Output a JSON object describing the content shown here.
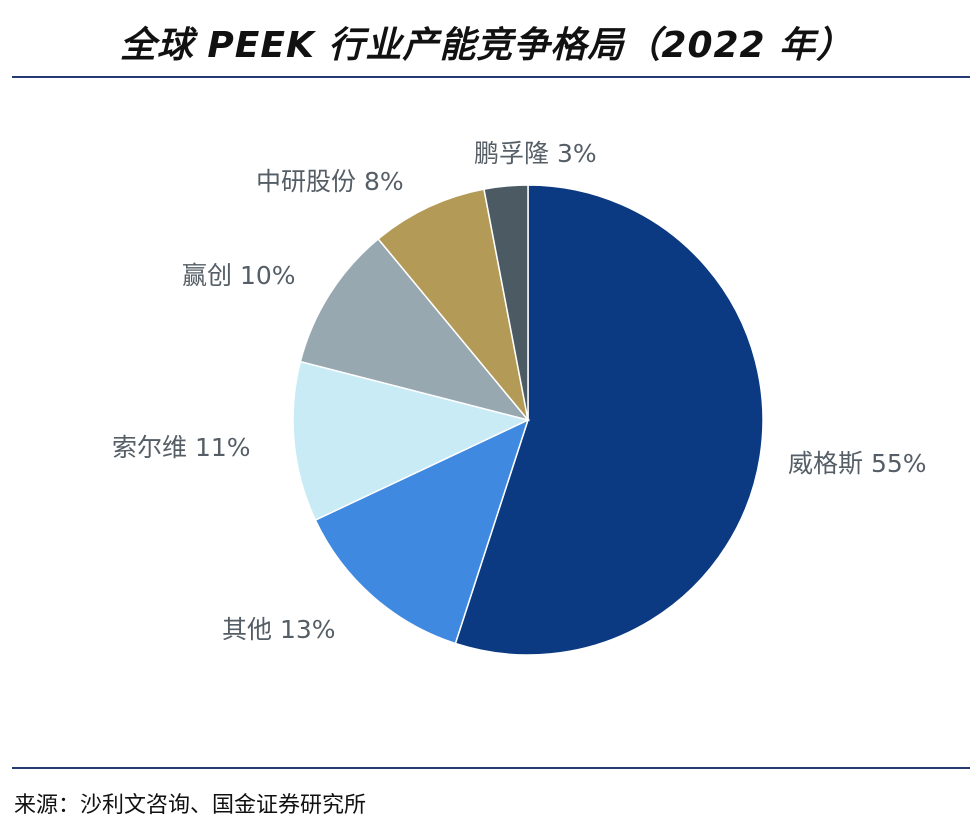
{
  "title": "全球 PEEK 行业产能竞争格局（2022 年）",
  "source": "来源：沙利文咨询、国金证券研究所",
  "chart_data": {
    "type": "pie",
    "title": "全球 PEEK 行业产能竞争格局（2022 年）",
    "slices": [
      {
        "label": "威格斯",
        "value": 55,
        "value_label": "55%",
        "color": "#0b3a82"
      },
      {
        "label": "其他",
        "value": 13,
        "value_label": "13%",
        "color": "#3f89e0"
      },
      {
        "label": "索尔维",
        "value": 11,
        "value_label": "11%",
        "color": "#c9ebf5"
      },
      {
        "label": "赢创",
        "value": 10,
        "value_label": "10%",
        "color": "#97a8b1"
      },
      {
        "label": "中研股份",
        "value": 8,
        "value_label": "8%",
        "color": "#b39a57"
      },
      {
        "label": "鹏孚隆",
        "value": 3,
        "value_label": "3%",
        "color": "#4c5b63"
      }
    ]
  }
}
